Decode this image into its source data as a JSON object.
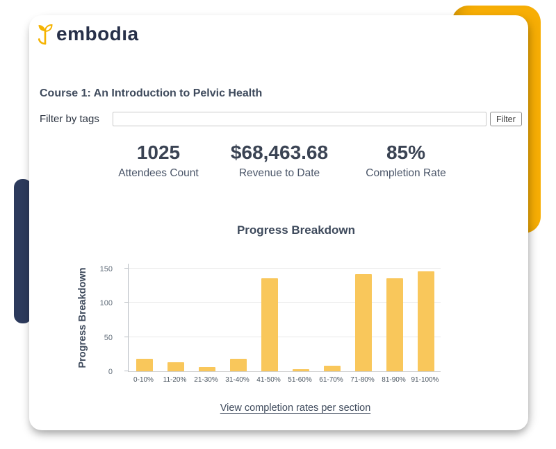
{
  "brand": {
    "logo_text": "embodıa",
    "logo_icon": "sprout-leaf-icon",
    "logo_text_color": "#273049",
    "logo_icon_color": "#F5B301"
  },
  "header": {
    "course_title": "Course 1: An Introduction to Pelvic Health"
  },
  "filter": {
    "label": "Filter by tags",
    "input_value": "",
    "input_placeholder": "",
    "button_label": "Filter"
  },
  "stats": [
    {
      "value": "1025",
      "label": "Attendees Count"
    },
    {
      "value": "$68,463.68",
      "label": "Revenue to Date"
    },
    {
      "value": "85%",
      "label": "Completion Rate"
    }
  ],
  "footer": {
    "link_label": "View completion rates per section"
  },
  "chart_data": {
    "type": "bar",
    "title": "Progress Breakdown",
    "ylabel": "Progress Breakdown",
    "xlabel": "",
    "categories": [
      "0-10%",
      "11-20%",
      "21-30%",
      "31-40%",
      "41-50%",
      "51-60%",
      "61-70%",
      "71-80%",
      "81-90%",
      "91-100%"
    ],
    "values": [
      18,
      13,
      6,
      18,
      136,
      3,
      8,
      142,
      136,
      146
    ],
    "yticks": [
      0,
      50,
      100,
      150
    ],
    "ylim": [
      0,
      150
    ],
    "grid": true,
    "legend": false,
    "bar_color": "#F9C75B"
  },
  "colors": {
    "accent_yellow": "#F7AE05",
    "brand_navy": "#2C3A5C",
    "text_dark": "#3E4A5C",
    "bar_yellow": "#F9C75B"
  }
}
